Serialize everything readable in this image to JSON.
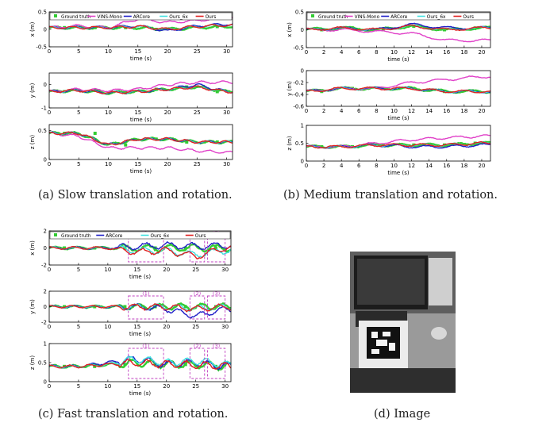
{
  "colors": {
    "ground_truth": "#33cc33",
    "vins_mono": "#e040c8",
    "arcore": "#1f1fc8",
    "ours_6x": "#40e0e0",
    "ours": "#e01f1f",
    "roi": "#c040c0",
    "axis": "#000000"
  },
  "panels": [
    {
      "caption": "(a) Slow translation and rotation.",
      "legend": [
        "Ground truth",
        "VINS-Mono",
        "ARCore",
        "Ours_6x",
        "Ours"
      ],
      "xlabel": "time (s)",
      "xticks": [
        0,
        5,
        10,
        15,
        20,
        25,
        30
      ],
      "subplots": [
        {
          "ylabel": "x (m)",
          "yticks": [
            "0.5",
            "0",
            "-0.5"
          ]
        },
        {
          "ylabel": "y (m)",
          "yticks": [
            "0",
            "-1"
          ]
        },
        {
          "ylabel": "z (m)",
          "yticks": [
            "0.5",
            "0"
          ]
        }
      ]
    },
    {
      "caption": "(b) Medium translation and rotation.",
      "legend": [
        "Ground truth",
        "VINS-Mono",
        "ARCore",
        "Ours_6x",
        "Ours"
      ],
      "xlabel": "time (s)",
      "xticks": [
        0,
        2,
        4,
        6,
        8,
        10,
        12,
        14,
        16,
        18,
        20
      ],
      "subplots": [
        {
          "ylabel": "x (m)",
          "yticks": [
            "0.5",
            "0",
            "-0.5"
          ]
        },
        {
          "ylabel": "y (m)",
          "yticks": [
            "0",
            "-0.2",
            "-0.4",
            "-0.6"
          ]
        },
        {
          "ylabel": "z (m)",
          "yticks": [
            "1",
            "0.5",
            "0"
          ]
        }
      ]
    },
    {
      "caption": "(c) Fast translation and rotation.",
      "legend": [
        "Ground truth",
        "ARCore",
        "Ours_6x",
        "Ours"
      ],
      "xlabel": "time (s)",
      "xticks": [
        0,
        5,
        10,
        15,
        20,
        25,
        30
      ],
      "subplots": [
        {
          "ylabel": "x (m)",
          "yticks": [
            "2",
            "0",
            "-2"
          ],
          "roi": [
            "(1)",
            "(2)",
            "(3)"
          ]
        },
        {
          "ylabel": "y (m)",
          "yticks": [
            "2",
            "0",
            "-2"
          ],
          "roi": [
            "(1)",
            "(2)",
            "(3)"
          ]
        },
        {
          "ylabel": "z (m)",
          "yticks": [
            "1",
            "0.5",
            "0"
          ],
          "roi": [
            "(1)",
            "(2)",
            "(3)"
          ]
        }
      ]
    }
  ],
  "image_panel": {
    "caption": "(d) Image"
  },
  "chart_data": [
    {
      "type": "line",
      "x": [
        0,
        5,
        10,
        15,
        20,
        25,
        30
      ],
      "xlabel": "time (s)",
      "ylabel": "x (m)",
      "ylim": [
        -0.5,
        0.5
      ],
      "series": [
        {
          "name": "Ground truth",
          "values": [
            0.05,
            0.05,
            0.05,
            0.05,
            0.0,
            0.05,
            0.08
          ]
        },
        {
          "name": "VINS-Mono",
          "values": [
            0.05,
            0.1,
            0.05,
            0.3,
            0.2,
            0.25,
            0.35
          ]
        },
        {
          "name": "ARCore",
          "values": [
            0.05,
            0.05,
            0.05,
            0.1,
            -0.05,
            0.1,
            0.15
          ]
        },
        {
          "name": "Ours_6x",
          "values": [
            0.05,
            0.05,
            0.05,
            0.08,
            0.0,
            0.08,
            0.12
          ]
        },
        {
          "name": "Ours",
          "values": [
            0.05,
            0.05,
            0.05,
            0.08,
            0.0,
            0.08,
            0.12
          ]
        }
      ]
    },
    {
      "type": "line",
      "x": [
        0,
        5,
        10,
        15,
        20,
        25,
        30
      ],
      "xlabel": "time (s)",
      "ylabel": "y (m)",
      "ylim": [
        -1,
        0.5
      ],
      "series": [
        {
          "name": "Ground truth",
          "values": [
            -0.3,
            -0.25,
            -0.35,
            -0.3,
            -0.2,
            -0.1,
            -0.3
          ]
        },
        {
          "name": "VINS-Mono",
          "values": [
            -0.3,
            -0.2,
            -0.25,
            -0.2,
            0.0,
            0.1,
            0.1
          ]
        },
        {
          "name": "ARCore",
          "values": [
            -0.3,
            -0.25,
            -0.35,
            -0.3,
            -0.2,
            0.0,
            -0.3
          ]
        },
        {
          "name": "Ours_6x",
          "values": [
            -0.3,
            -0.25,
            -0.35,
            -0.3,
            -0.2,
            -0.1,
            -0.3
          ]
        },
        {
          "name": "Ours",
          "values": [
            -0.3,
            -0.25,
            -0.35,
            -0.3,
            -0.2,
            -0.1,
            -0.3
          ]
        }
      ]
    },
    {
      "type": "line",
      "x": [
        0,
        5,
        10,
        15,
        20,
        25,
        30
      ],
      "xlabel": "time (s)",
      "ylabel": "z (m)",
      "ylim": [
        0,
        0.6
      ],
      "series": [
        {
          "name": "Ground truth",
          "values": [
            0.45,
            0.45,
            0.25,
            0.35,
            0.35,
            0.3,
            0.3
          ]
        },
        {
          "name": "VINS-Mono",
          "values": [
            0.45,
            0.4,
            0.2,
            0.2,
            0.2,
            0.15,
            0.12
          ]
        },
        {
          "name": "ARCore",
          "values": [
            0.45,
            0.45,
            0.25,
            0.35,
            0.35,
            0.3,
            0.3
          ]
        },
        {
          "name": "Ours_6x",
          "values": [
            0.45,
            0.45,
            0.25,
            0.35,
            0.35,
            0.3,
            0.3
          ]
        },
        {
          "name": "Ours",
          "values": [
            0.45,
            0.45,
            0.25,
            0.35,
            0.35,
            0.3,
            0.3
          ]
        }
      ]
    },
    {
      "type": "line",
      "x": [
        0,
        4,
        8,
        12,
        16,
        20
      ],
      "xlabel": "time (s)",
      "ylabel": "x (m)",
      "ylim": [
        -0.5,
        0.5
      ],
      "series": [
        {
          "name": "Ground truth",
          "values": [
            0.0,
            0.05,
            0.0,
            0.1,
            0.0,
            0.05
          ]
        },
        {
          "name": "VINS-Mono",
          "values": [
            0.0,
            0.0,
            -0.05,
            -0.1,
            -0.3,
            -0.3
          ]
        },
        {
          "name": "ARCore",
          "values": [
            0.0,
            0.05,
            0.0,
            0.15,
            0.05,
            0.05
          ]
        },
        {
          "name": "Ours_6x",
          "values": [
            0.0,
            0.05,
            0.0,
            0.1,
            0.0,
            0.05
          ]
        },
        {
          "name": "Ours",
          "values": [
            0.0,
            0.05,
            0.0,
            0.1,
            0.0,
            0.05
          ]
        }
      ]
    },
    {
      "type": "line",
      "x": [
        0,
        4,
        8,
        12,
        16,
        20
      ],
      "xlabel": "time (s)",
      "ylabel": "y (m)",
      "ylim": [
        -0.6,
        0
      ],
      "series": [
        {
          "name": "Ground truth",
          "values": [
            -0.35,
            -0.3,
            -0.3,
            -0.3,
            -0.35,
            -0.35
          ]
        },
        {
          "name": "VINS-Mono",
          "values": [
            -0.35,
            -0.3,
            -0.3,
            -0.2,
            -0.15,
            -0.1
          ]
        },
        {
          "name": "ARCore",
          "values": [
            -0.35,
            -0.3,
            -0.3,
            -0.3,
            -0.35,
            -0.35
          ]
        },
        {
          "name": "Ours_6x",
          "values": [
            -0.35,
            -0.3,
            -0.3,
            -0.3,
            -0.35,
            -0.35
          ]
        },
        {
          "name": "Ours",
          "values": [
            -0.35,
            -0.3,
            -0.3,
            -0.3,
            -0.35,
            -0.35
          ]
        }
      ]
    },
    {
      "type": "line",
      "x": [
        0,
        4,
        8,
        12,
        16,
        20
      ],
      "xlabel": "time (s)",
      "ylabel": "z (m)",
      "ylim": [
        0,
        1
      ],
      "series": [
        {
          "name": "Ground truth",
          "values": [
            0.4,
            0.4,
            0.45,
            0.45,
            0.45,
            0.5
          ]
        },
        {
          "name": "VINS-Mono",
          "values": [
            0.4,
            0.4,
            0.5,
            0.6,
            0.65,
            0.7
          ]
        },
        {
          "name": "ARCore",
          "values": [
            0.4,
            0.4,
            0.45,
            0.4,
            0.4,
            0.45
          ]
        },
        {
          "name": "Ours_6x",
          "values": [
            0.4,
            0.4,
            0.45,
            0.45,
            0.45,
            0.5
          ]
        },
        {
          "name": "Ours",
          "values": [
            0.4,
            0.4,
            0.45,
            0.45,
            0.45,
            0.5
          ]
        }
      ]
    },
    {
      "type": "line",
      "x": [
        0,
        5,
        10,
        15,
        20,
        25,
        30
      ],
      "xlabel": "time (s)",
      "ylabel": "x (m)",
      "ylim": [
        -2,
        2
      ],
      "series": [
        {
          "name": "Ground truth",
          "values": [
            0.0,
            0.0,
            0.0,
            0.0,
            0.0,
            0.0,
            0.0
          ]
        },
        {
          "name": "ARCore",
          "values": [
            0.0,
            0.0,
            0.0,
            0.2,
            0.3,
            0.2,
            0.3
          ]
        },
        {
          "name": "Ours_6x",
          "values": [
            0.0,
            0.0,
            0.0,
            -0.3,
            -0.3,
            -0.8,
            -0.3
          ]
        },
        {
          "name": "Ours",
          "values": [
            0.0,
            0.0,
            0.0,
            -0.5,
            -0.3,
            -1.0,
            0.0
          ]
        }
      ]
    },
    {
      "type": "line",
      "x": [
        0,
        5,
        10,
        15,
        20,
        25,
        30
      ],
      "xlabel": "time (s)",
      "ylabel": "y (m)",
      "ylim": [
        -2,
        2
      ],
      "series": [
        {
          "name": "Ground truth",
          "values": [
            0.0,
            0.0,
            0.0,
            0.0,
            0.0,
            0.0,
            0.0
          ]
        },
        {
          "name": "ARCore",
          "values": [
            0.0,
            0.0,
            0.0,
            0.0,
            -0.3,
            -1.2,
            -0.3
          ]
        },
        {
          "name": "Ours_6x",
          "values": [
            0.0,
            0.0,
            0.0,
            0.0,
            0.0,
            -0.2,
            0.0
          ]
        },
        {
          "name": "Ours",
          "values": [
            0.0,
            0.0,
            0.0,
            0.0,
            0.0,
            -0.3,
            0.0
          ]
        }
      ]
    },
    {
      "type": "line",
      "x": [
        0,
        5,
        10,
        15,
        20,
        25,
        30
      ],
      "xlabel": "time (s)",
      "ylabel": "z (m)",
      "ylim": [
        0,
        1
      ],
      "series": [
        {
          "name": "Ground truth",
          "values": [
            0.4,
            0.4,
            0.45,
            0.5,
            0.45,
            0.45,
            0.4
          ]
        },
        {
          "name": "ARCore",
          "values": [
            0.4,
            0.4,
            0.5,
            0.6,
            0.45,
            0.5,
            0.4
          ]
        },
        {
          "name": "Ours_6x",
          "values": [
            0.4,
            0.4,
            0.45,
            0.6,
            0.5,
            0.55,
            0.45
          ]
        },
        {
          "name": "Ours",
          "values": [
            0.4,
            0.4,
            0.45,
            0.5,
            0.45,
            0.45,
            0.4
          ]
        }
      ]
    }
  ]
}
